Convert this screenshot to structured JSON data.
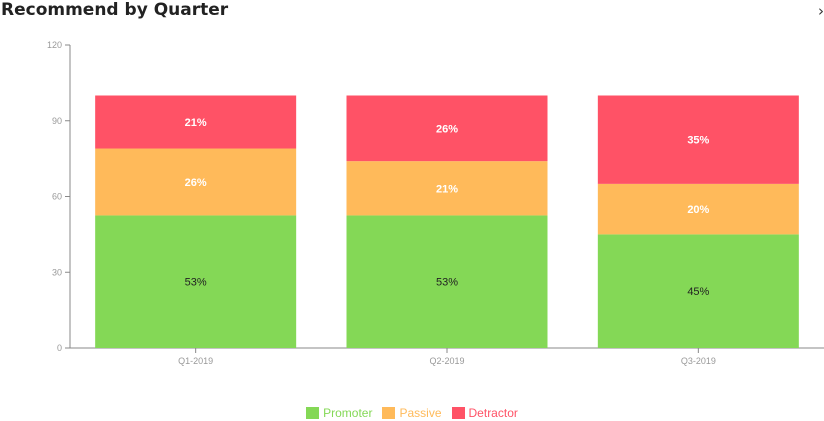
{
  "title": "Recommend by Quarter",
  "colors": {
    "promoter": "#84d856",
    "passive": "#ffba5a",
    "detractor": "#ff5266",
    "axis": "#888888",
    "tick_text": "#999999"
  },
  "chart_data": {
    "type": "bar",
    "stacked": true,
    "title": "Recommend by Quarter",
    "xlabel": "",
    "ylabel": "",
    "ylim": [
      0,
      120
    ],
    "yticks": [
      0,
      30,
      60,
      90,
      120
    ],
    "categories": [
      "Q1-2019",
      "Q2-2019",
      "Q3-2019"
    ],
    "series": [
      {
        "name": "Promoter",
        "color": "#84d856",
        "values": [
          52.5,
          52.5,
          45
        ],
        "labels": [
          "53%",
          "53%",
          "45%"
        ],
        "label_color": "#222222"
      },
      {
        "name": "Passive",
        "color": "#ffba5a",
        "values": [
          26.5,
          21.5,
          20
        ],
        "labels": [
          "26%",
          "21%",
          "20%"
        ],
        "label_color": "#ffffff"
      },
      {
        "name": "Detractor",
        "color": "#ff5266",
        "values": [
          21,
          26,
          35
        ],
        "labels": [
          "21%",
          "26%",
          "35%"
        ],
        "label_color": "#ffffff"
      }
    ],
    "legend_position": "bottom-center",
    "grid": false
  }
}
